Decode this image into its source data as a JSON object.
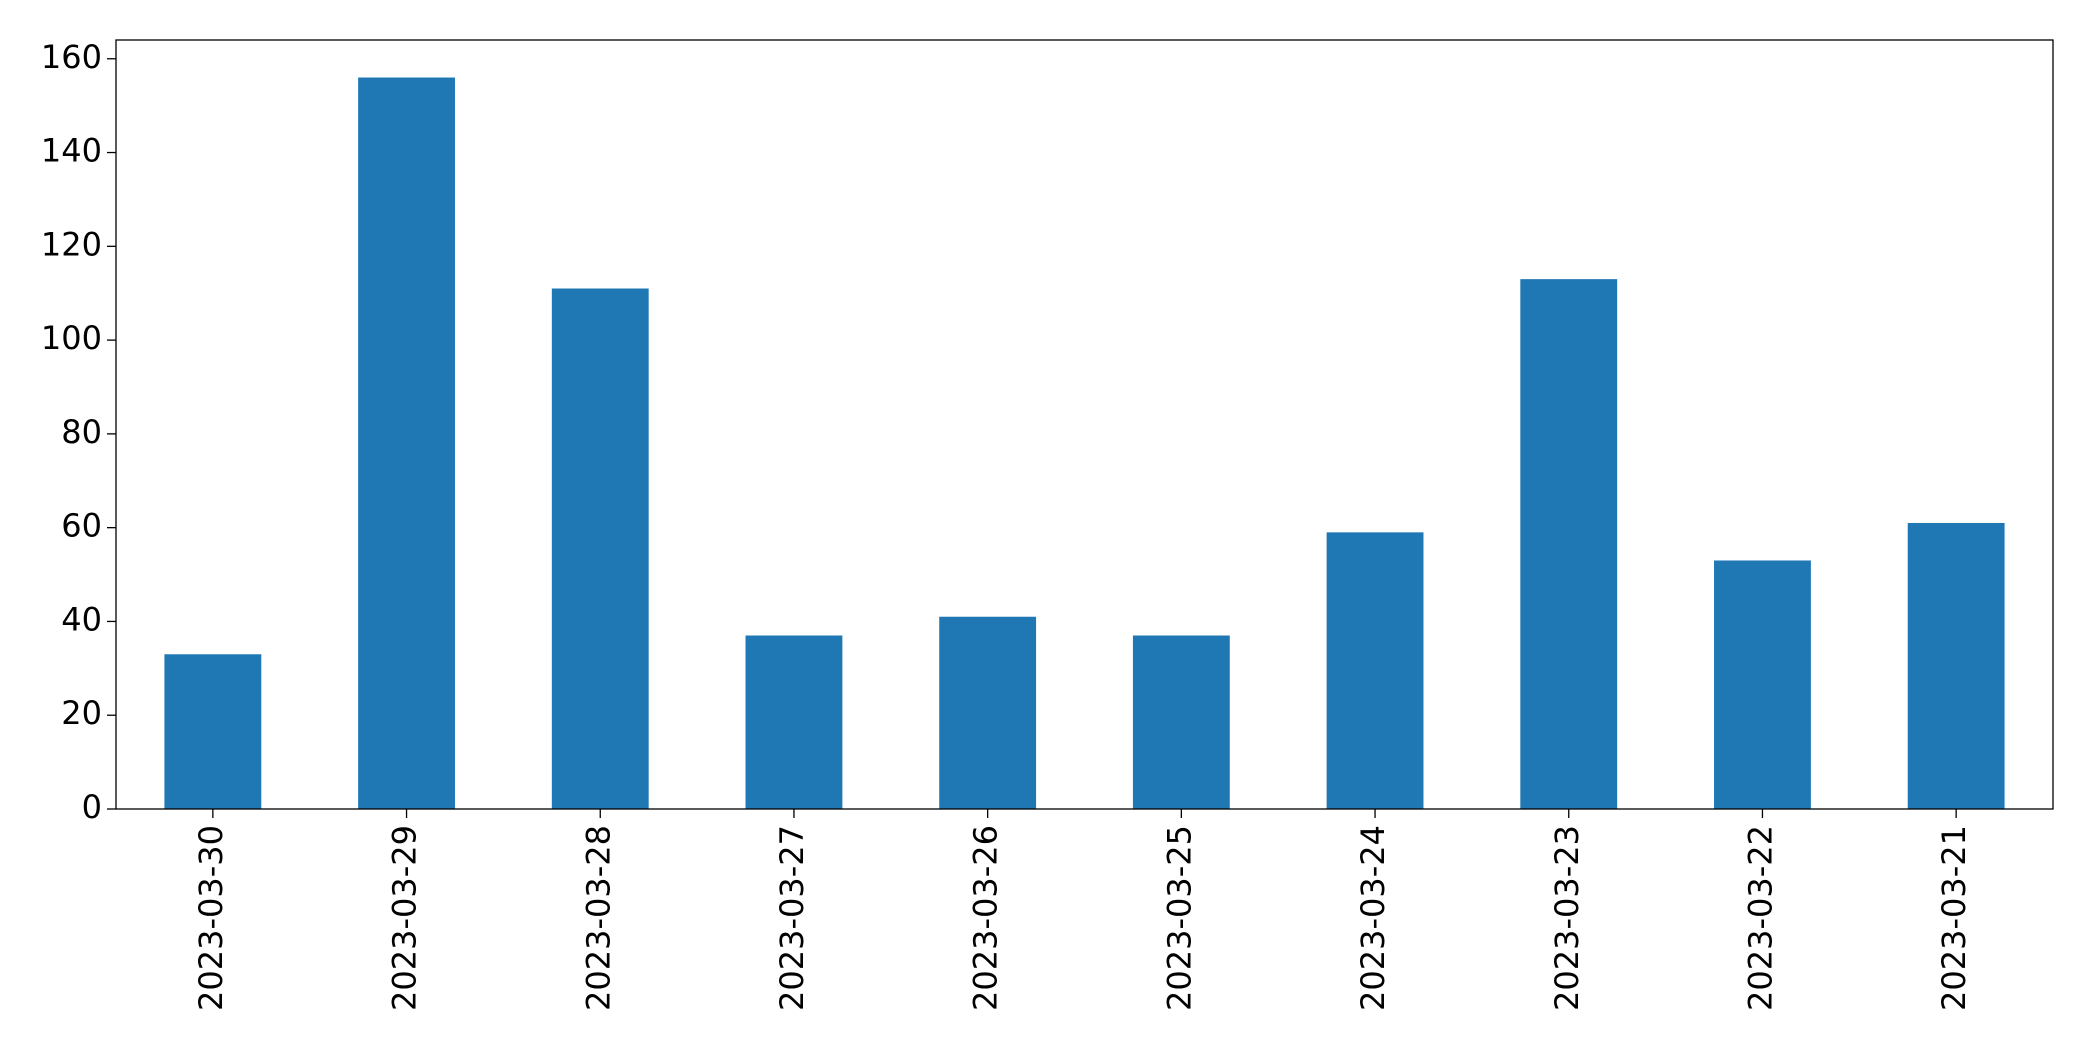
{
  "chart_data": {
    "type": "bar",
    "categories": [
      "2023-03-30",
      "2023-03-29",
      "2023-03-28",
      "2023-03-27",
      "2023-03-26",
      "2023-03-25",
      "2023-03-24",
      "2023-03-23",
      "2023-03-22",
      "2023-03-21"
    ],
    "values": [
      33,
      156,
      111,
      37,
      41,
      37,
      59,
      113,
      53,
      61
    ],
    "color": "#1f77b4",
    "ylim": [
      0,
      164
    ],
    "yticks": [
      0,
      20,
      40,
      60,
      80,
      100,
      120,
      140,
      160
    ],
    "grid": false
  }
}
